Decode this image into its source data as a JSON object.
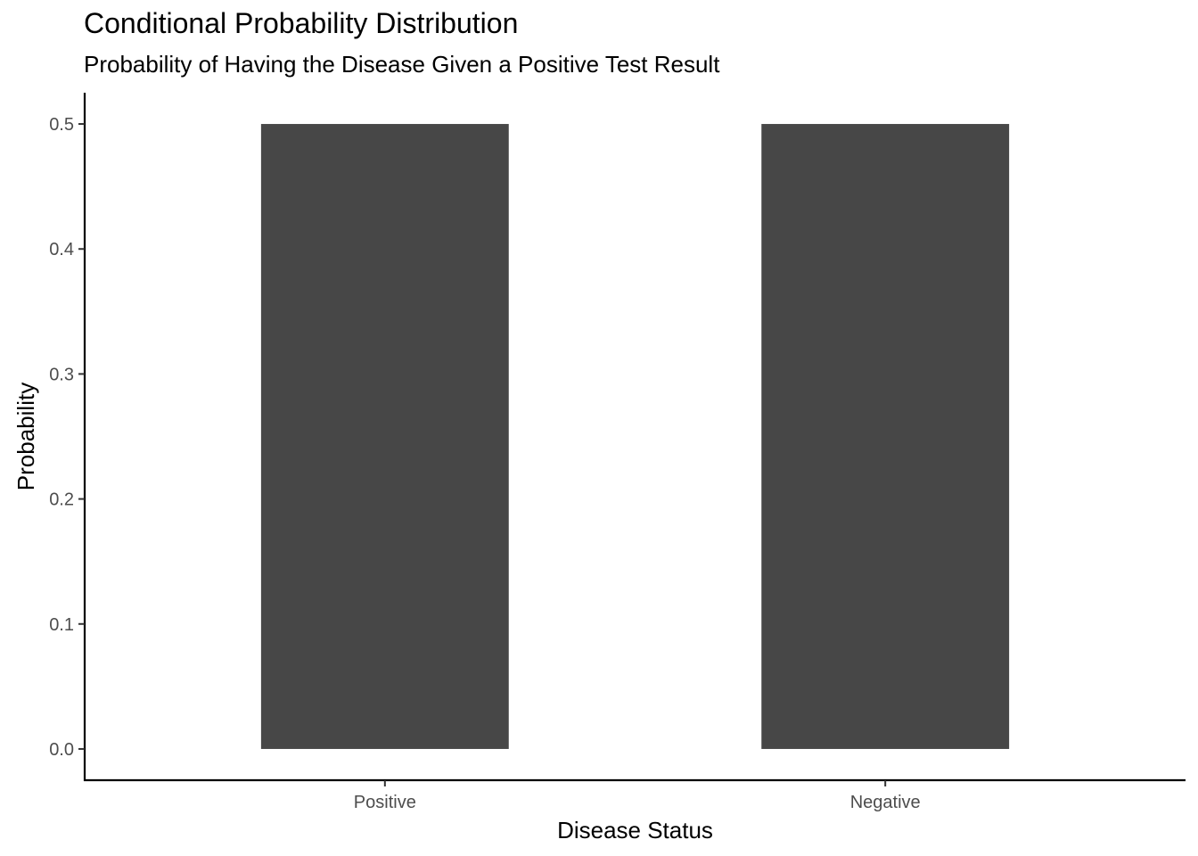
{
  "chart_data": {
    "type": "bar",
    "title": "Conditional Probability Distribution",
    "subtitle": "Probability of Having the Disease Given a Positive Test Result",
    "xlabel": "Disease Status",
    "ylabel": "Probability",
    "categories": [
      "Positive",
      "Negative"
    ],
    "values": [
      0.5,
      0.5
    ],
    "ylim": [
      -0.025,
      0.525
    ],
    "yticks": [
      0.0,
      0.1,
      0.2,
      0.3,
      0.4,
      0.5
    ],
    "ytick_labels": [
      "0.0",
      "0.1",
      "0.2",
      "0.3",
      "0.4",
      "0.5"
    ],
    "grid": false,
    "legend": "none",
    "bar_color": "#474747",
    "axis_color": "#000000"
  }
}
